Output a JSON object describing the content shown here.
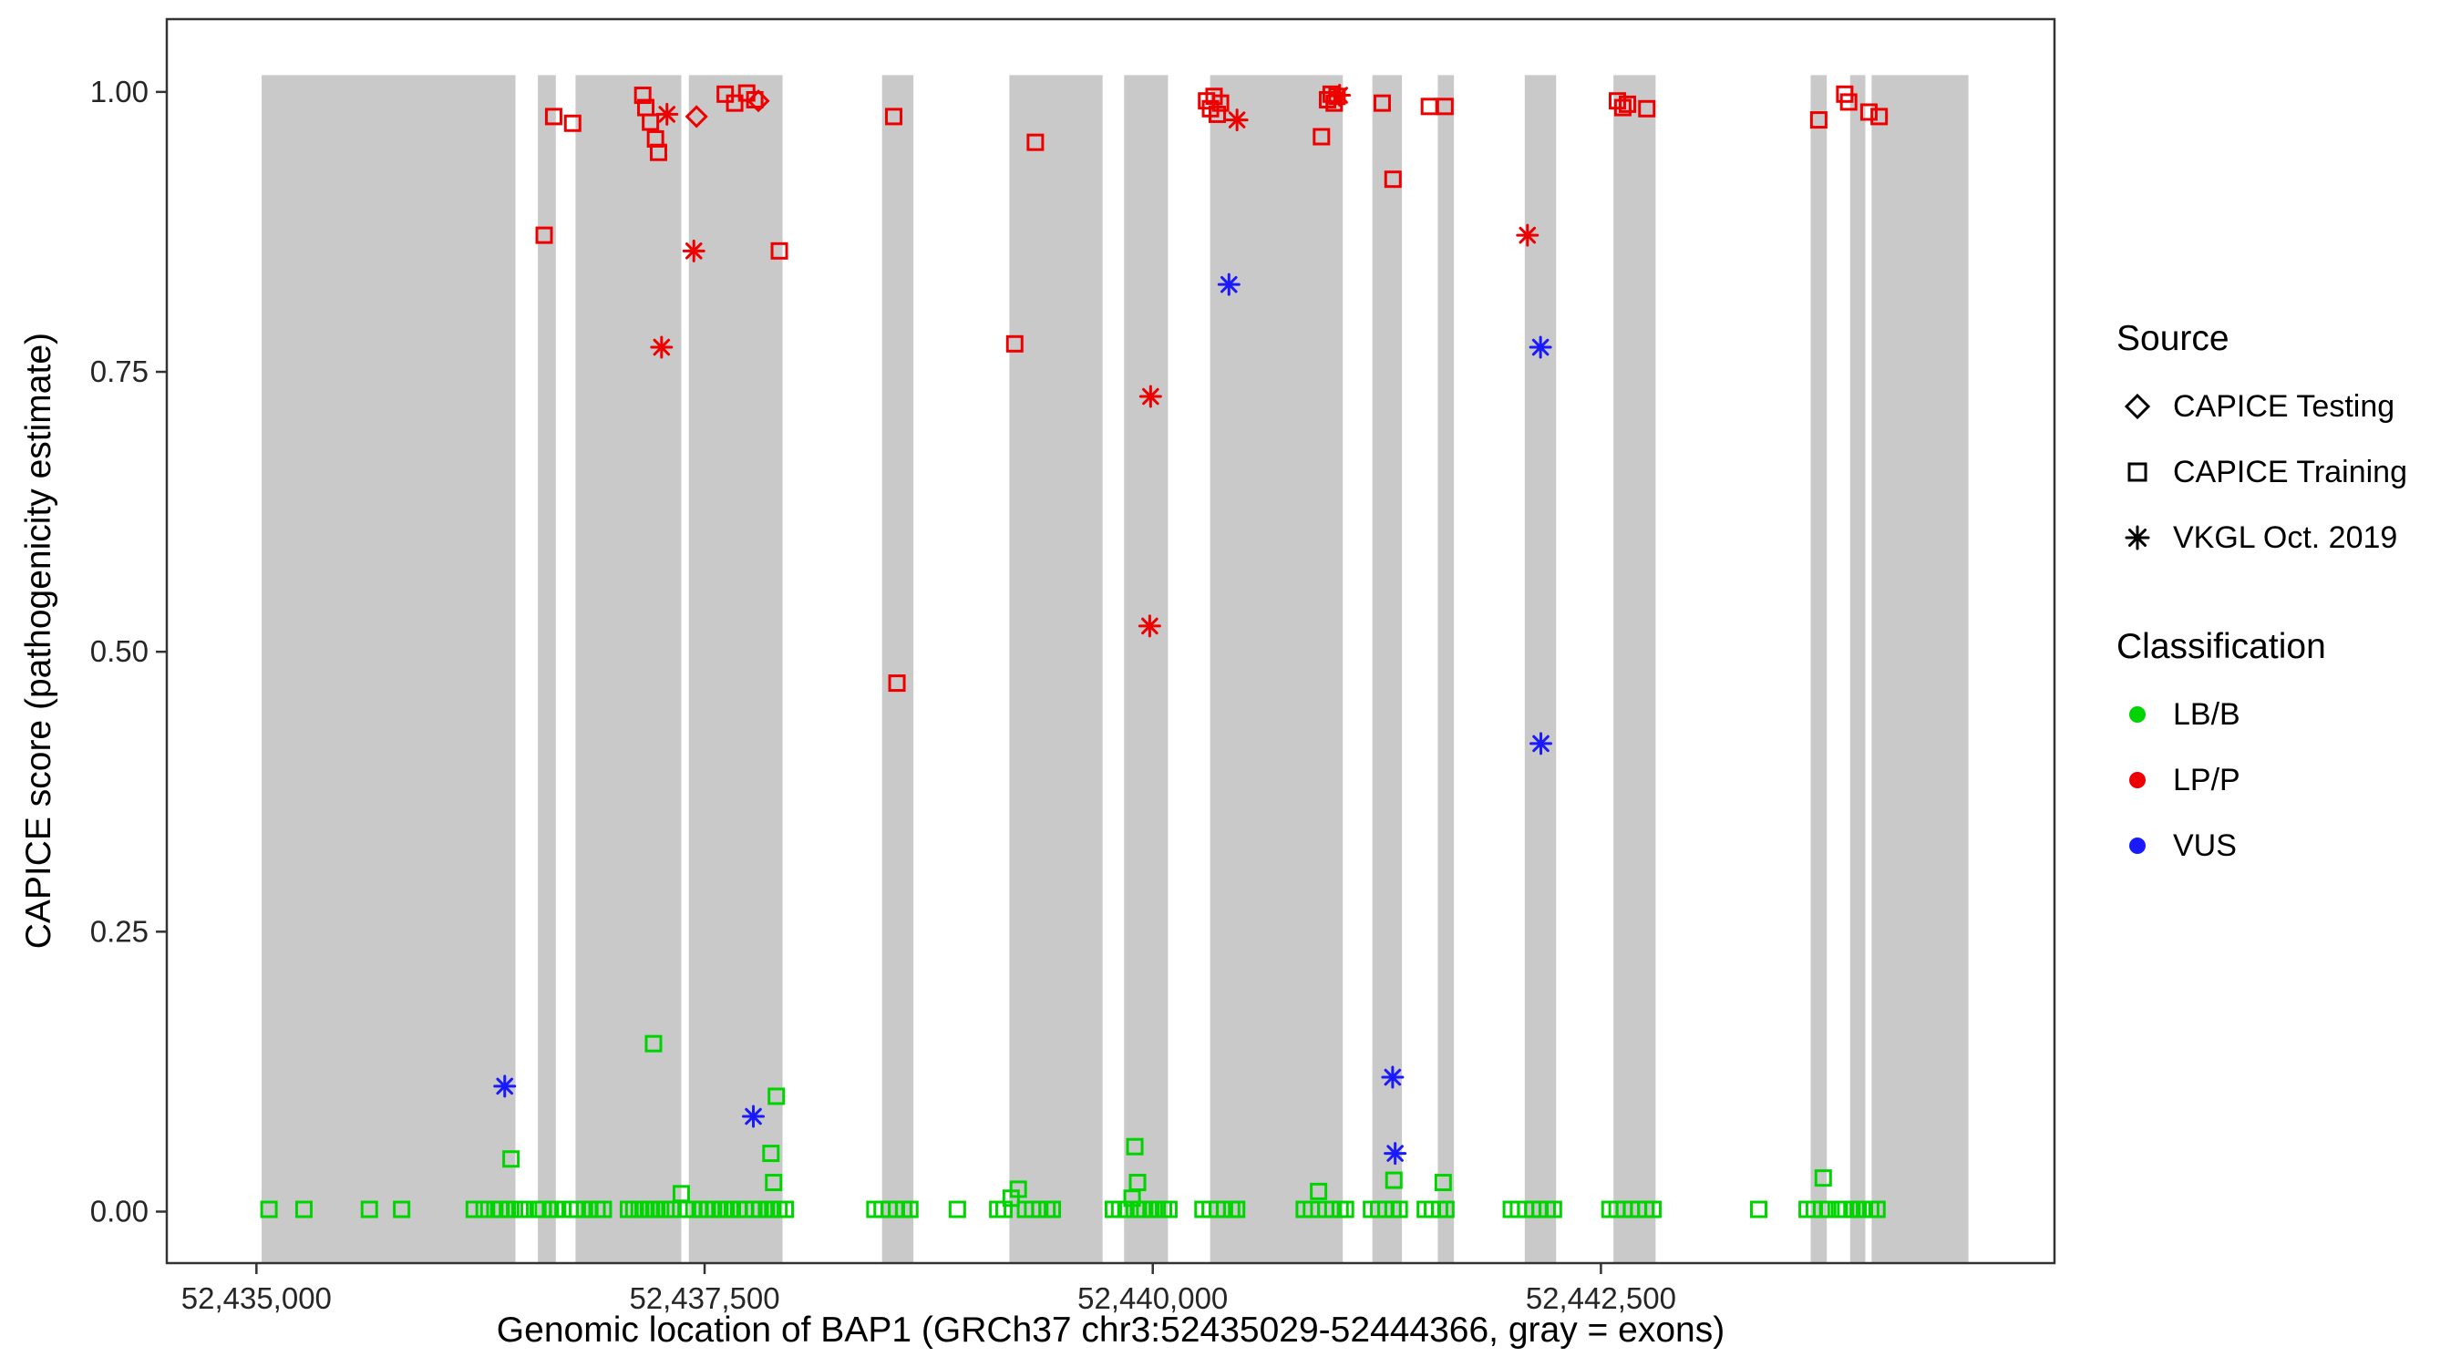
{
  "chart_data": {
    "type": "scatter",
    "title": "",
    "xlabel": "Genomic location of BAP1 (GRCh37 chr3:52435029-52444366, gray = exons)",
    "ylabel": "CAPICE score (pathogenicity estimate)",
    "x_domain": [
      52434500,
      52445030
    ],
    "y_domain": [
      -0.046,
      1.065
    ],
    "x_ticks": [
      {
        "v": 52435000,
        "label": "52,435,000"
      },
      {
        "v": 52437500,
        "label": "52,437,500"
      },
      {
        "v": 52440000,
        "label": "52,440,000"
      },
      {
        "v": 52442500,
        "label": "52,442,500"
      }
    ],
    "y_ticks": [
      {
        "v": 0.0,
        "label": "0.00"
      },
      {
        "v": 0.25,
        "label": "0.25"
      },
      {
        "v": 0.5,
        "label": "0.50"
      },
      {
        "v": 0.75,
        "label": "0.75"
      },
      {
        "v": 1.0,
        "label": "1.00"
      }
    ],
    "exon_color": "#c9c9c9",
    "exons": [
      [
        52435029,
        52436445
      ],
      [
        52436570,
        52436670
      ],
      [
        52436780,
        52437370
      ],
      [
        52437412,
        52437935
      ],
      [
        52438490,
        52438665
      ],
      [
        52439200,
        52439720
      ],
      [
        52439840,
        52440085
      ],
      [
        52440320,
        52441060
      ],
      [
        52441225,
        52441390
      ],
      [
        52441590,
        52441680
      ],
      [
        52442075,
        52442250
      ],
      [
        52442570,
        52442805
      ],
      [
        52443670,
        52443760
      ],
      [
        52443890,
        52443975
      ],
      [
        52444010,
        52444550
      ]
    ],
    "classification_colors": {
      "LB/B": "#00d400",
      "LP/P": "#ee0000",
      "VUS": "#1a1aff"
    },
    "marker_by_source": {
      "CAPICE Testing": "diamond",
      "CAPICE Training": "square",
      "VKGL Oct. 2019": "asterisk"
    },
    "groups": [
      {
        "classification": "LB/B",
        "source": "CAPICE Training",
        "points": [
          [
            52436420,
            0.047
          ],
          [
            52437215,
            0.15
          ],
          [
            52437900,
            0.103
          ],
          [
            52437870,
            0.052
          ],
          [
            52437885,
            0.026
          ],
          [
            52439900,
            0.058
          ],
          [
            52439915,
            0.026
          ],
          [
            52441345,
            0.028
          ],
          [
            52441620,
            0.026
          ],
          [
            52443740,
            0.03
          ],
          [
            52435070,
            0.002
          ],
          [
            52435265,
            0.002
          ],
          [
            52435630,
            0.002
          ],
          [
            52435810,
            0.002
          ],
          [
            52436215,
            0.002
          ],
          [
            52436270,
            0.002
          ],
          [
            52436330,
            0.002
          ],
          [
            52436365,
            0.002
          ],
          [
            52436400,
            0.002
          ],
          [
            52436440,
            0.002
          ],
          [
            52436470,
            0.002
          ],
          [
            52436500,
            0.002
          ],
          [
            52436570,
            0.002
          ],
          [
            52436600,
            0.002
          ],
          [
            52436640,
            0.002
          ],
          [
            52436680,
            0.002
          ],
          [
            52436710,
            0.002
          ],
          [
            52436750,
            0.002
          ],
          [
            52436790,
            0.002
          ],
          [
            52436830,
            0.002
          ],
          [
            52436860,
            0.002
          ],
          [
            52436900,
            0.002
          ],
          [
            52436935,
            0.002
          ],
          [
            52437075,
            0.002
          ],
          [
            52437105,
            0.002
          ],
          [
            52437135,
            0.002
          ],
          [
            52437165,
            0.002
          ],
          [
            52437195,
            0.002
          ],
          [
            52437225,
            0.002
          ],
          [
            52437255,
            0.002
          ],
          [
            52437285,
            0.002
          ],
          [
            52437315,
            0.002
          ],
          [
            52437370,
            0.016
          ],
          [
            52437405,
            0.002
          ],
          [
            52437440,
            0.002
          ],
          [
            52437475,
            0.002
          ],
          [
            52437515,
            0.002
          ],
          [
            52437550,
            0.002
          ],
          [
            52437585,
            0.002
          ],
          [
            52437620,
            0.002
          ],
          [
            52437655,
            0.002
          ],
          [
            52437690,
            0.002
          ],
          [
            52437725,
            0.002
          ],
          [
            52437775,
            0.002
          ],
          [
            52437810,
            0.002
          ],
          [
            52437845,
            0.002
          ],
          [
            52437880,
            0.002
          ],
          [
            52437915,
            0.002
          ],
          [
            52437950,
            0.002
          ],
          [
            52438450,
            0.002
          ],
          [
            52438490,
            0.002
          ],
          [
            52438530,
            0.002
          ],
          [
            52438570,
            0.002
          ],
          [
            52438610,
            0.002
          ],
          [
            52438645,
            0.002
          ],
          [
            52438910,
            0.002
          ],
          [
            52439135,
            0.002
          ],
          [
            52439170,
            0.002
          ],
          [
            52439210,
            0.012
          ],
          [
            52439250,
            0.02
          ],
          [
            52439290,
            0.002
          ],
          [
            52439330,
            0.002
          ],
          [
            52439370,
            0.002
          ],
          [
            52439410,
            0.002
          ],
          [
            52439440,
            0.002
          ],
          [
            52439780,
            0.002
          ],
          [
            52439815,
            0.002
          ],
          [
            52439850,
            0.002
          ],
          [
            52439885,
            0.012
          ],
          [
            52439920,
            0.002
          ],
          [
            52439955,
            0.002
          ],
          [
            52439990,
            0.002
          ],
          [
            52440025,
            0.002
          ],
          [
            52440060,
            0.002
          ],
          [
            52440090,
            0.002
          ],
          [
            52440280,
            0.002
          ],
          [
            52440320,
            0.002
          ],
          [
            52440360,
            0.002
          ],
          [
            52440400,
            0.002
          ],
          [
            52440440,
            0.002
          ],
          [
            52440468,
            0.002
          ],
          [
            52440845,
            0.002
          ],
          [
            52440885,
            0.002
          ],
          [
            52440925,
            0.018
          ],
          [
            52440965,
            0.002
          ],
          [
            52441005,
            0.002
          ],
          [
            52441045,
            0.002
          ],
          [
            52441075,
            0.002
          ],
          [
            52441220,
            0.002
          ],
          [
            52441260,
            0.002
          ],
          [
            52441300,
            0.002
          ],
          [
            52441340,
            0.002
          ],
          [
            52441375,
            0.002
          ],
          [
            52441520,
            0.002
          ],
          [
            52441560,
            0.002
          ],
          [
            52441600,
            0.002
          ],
          [
            52441635,
            0.002
          ],
          [
            52442000,
            0.002
          ],
          [
            52442040,
            0.002
          ],
          [
            52442080,
            0.002
          ],
          [
            52442120,
            0.002
          ],
          [
            52442160,
            0.002
          ],
          [
            52442200,
            0.002
          ],
          [
            52442235,
            0.002
          ],
          [
            52442550,
            0.002
          ],
          [
            52442590,
            0.002
          ],
          [
            52442630,
            0.002
          ],
          [
            52442670,
            0.002
          ],
          [
            52442710,
            0.002
          ],
          [
            52442750,
            0.002
          ],
          [
            52442790,
            0.002
          ],
          [
            52443380,
            0.002
          ],
          [
            52443650,
            0.002
          ],
          [
            52443690,
            0.002
          ],
          [
            52443730,
            0.002
          ],
          [
            52443765,
            0.002
          ],
          [
            52443830,
            0.002
          ],
          [
            52443865,
            0.002
          ],
          [
            52443900,
            0.002
          ],
          [
            52443935,
            0.002
          ],
          [
            52443970,
            0.002
          ],
          [
            52444005,
            0.002
          ],
          [
            52444040,
            0.002
          ]
        ]
      },
      {
        "classification": "LP/P",
        "source": "CAPICE Training",
        "points": [
          [
            52436605,
            0.872
          ],
          [
            52436658,
            0.978
          ],
          [
            52436764,
            0.972
          ],
          [
            52437155,
            0.997
          ],
          [
            52437172,
            0.986
          ],
          [
            52437198,
            0.973
          ],
          [
            52437226,
            0.958
          ],
          [
            52437243,
            0.946
          ],
          [
            52437615,
            0.998
          ],
          [
            52437668,
            0.99
          ],
          [
            52437735,
            0.999
          ],
          [
            52437780,
            0.993
          ],
          [
            52437917,
            0.858
          ],
          [
            52438555,
            0.978
          ],
          [
            52438573,
            0.472
          ],
          [
            52439230,
            0.775
          ],
          [
            52439345,
            0.955
          ],
          [
            52440300,
            0.992
          ],
          [
            52440322,
            0.985
          ],
          [
            52440342,
            0.996
          ],
          [
            52440360,
            0.98
          ],
          [
            52440378,
            0.99
          ],
          [
            52440941,
            0.96
          ],
          [
            52440975,
            0.993
          ],
          [
            52440995,
            0.998
          ],
          [
            52441012,
            0.99
          ],
          [
            52441028,
            0.996
          ],
          [
            52441280,
            0.99
          ],
          [
            52441340,
            0.922
          ],
          [
            52441543,
            0.987
          ],
          [
            52441630,
            0.987
          ],
          [
            52442592,
            0.992
          ],
          [
            52442622,
            0.986
          ],
          [
            52442648,
            0.989
          ],
          [
            52442756,
            0.985
          ],
          [
            52443715,
            0.975
          ],
          [
            52443860,
            0.998
          ],
          [
            52443882,
            0.991
          ],
          [
            52443995,
            0.982
          ],
          [
            52444052,
            0.978
          ]
        ]
      },
      {
        "classification": "LP/P",
        "source": "CAPICE Testing",
        "points": [
          [
            52437455,
            0.978
          ],
          [
            52437800,
            0.992
          ]
        ]
      },
      {
        "classification": "LP/P",
        "source": "VKGL Oct. 2019",
        "points": [
          [
            52437290,
            0.98
          ],
          [
            52437260,
            0.772
          ],
          [
            52437440,
            0.858
          ],
          [
            52439988,
            0.728
          ],
          [
            52439983,
            0.523
          ],
          [
            52440470,
            0.975
          ],
          [
            52441042,
            0.997
          ],
          [
            52442090,
            0.872
          ]
        ]
      },
      {
        "classification": "VUS",
        "source": "VKGL Oct. 2019",
        "points": [
          [
            52436385,
            0.112
          ],
          [
            52437772,
            0.085
          ],
          [
            52440425,
            0.828
          ],
          [
            52441338,
            0.12
          ],
          [
            52441352,
            0.052
          ],
          [
            52442163,
            0.772
          ],
          [
            52442165,
            0.418
          ]
        ]
      }
    ],
    "legend": {
      "source_title": "Source",
      "source_items": [
        {
          "label": "CAPICE Testing",
          "marker": "diamond"
        },
        {
          "label": "CAPICE Training",
          "marker": "square"
        },
        {
          "label": "VKGL Oct. 2019",
          "marker": "asterisk"
        }
      ],
      "classification_title": "Classification",
      "classification_items": [
        {
          "label": "LB/B",
          "color": "#00d400"
        },
        {
          "label": "LP/P",
          "color": "#ee0000"
        },
        {
          "label": "VUS",
          "color": "#1a1aff"
        }
      ]
    }
  }
}
